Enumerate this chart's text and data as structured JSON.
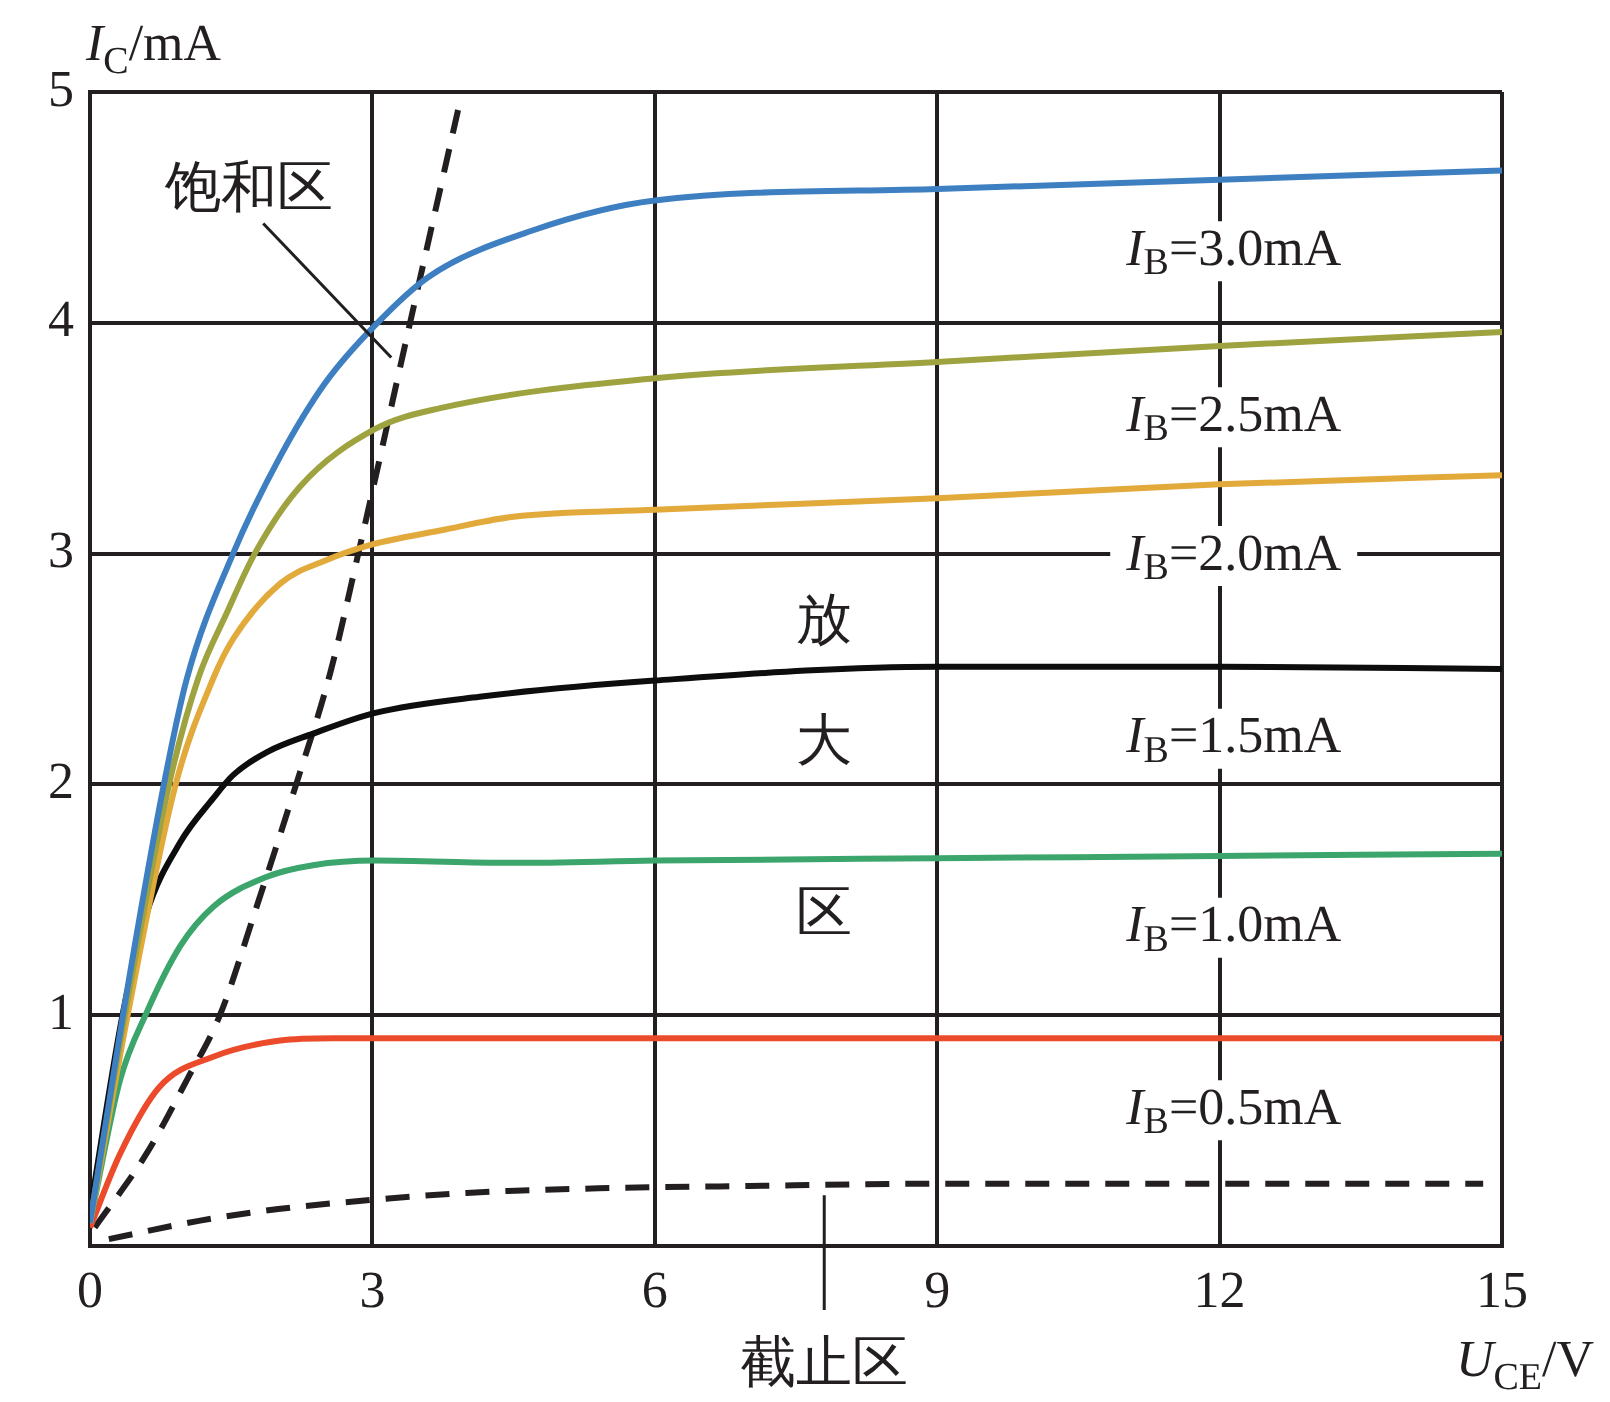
{
  "chart_data": {
    "type": "line",
    "xlabel": "U$_{CE}$/V",
    "ylabel": "I$_{C}$/mA",
    "xlim": [
      0,
      15
    ],
    "xticks": [
      0,
      3,
      6,
      9,
      12,
      15
    ],
    "ylim": [
      0,
      5
    ],
    "yticks": [
      1,
      2,
      3,
      4,
      5
    ],
    "grid": true,
    "marker": "none",
    "annotations": [
      {
        "text": "饱和区",
        "x": 3.2,
        "y": 3.85
      },
      "放大区",
      {
        "text": "截止区",
        "x": 7.8,
        "y": 0.22
      }
    ],
    "series": [
      {
        "name": "I$_{B}$=3.0mA",
        "color": "#3d7fc1",
        "x": [
          0,
          0.35,
          0.78,
          1.03,
          1.52,
          2.02,
          2.5,
          3.03,
          3.6,
          4.7,
          6,
          9,
          12,
          15
        ],
        "values": [
          0.1,
          1,
          1.99,
          2.46,
          3,
          3.42,
          3.74,
          3.99,
          4.2,
          4.4,
          4.53,
          4.58,
          4.62,
          4.66
        ]
      },
      {
        "name": "I$_{B}$=2.5mA",
        "color": "#9fa33f",
        "x": [
          0,
          0.37,
          0.84,
          1.15,
          1.45,
          1.75,
          2.23,
          3.03,
          3.72,
          6,
          9,
          12,
          15
        ],
        "values": [
          0.1,
          1,
          2,
          2.46,
          2.74,
          3,
          3.29,
          3.54,
          3.63,
          3.76,
          3.83,
          3.9,
          3.96
        ]
      },
      {
        "name": "I$_{B}$=2.0mA",
        "color": "#e2a93b",
        "x": [
          0,
          0.4,
          0.91,
          1.31,
          1.52,
          2.02,
          2.5,
          3,
          3.72,
          4.5,
          6,
          9,
          12,
          15
        ],
        "values": [
          0.1,
          1,
          2,
          2.46,
          2.63,
          2.87,
          2.97,
          3.04,
          3.1,
          3.16,
          3.19,
          3.24,
          3.3,
          3.34
        ]
      },
      {
        "name": "I$_{B}$=1.5mA",
        "color": "#0d0d0d",
        "x": [
          0,
          0.35,
          0.6,
          0.96,
          1.31,
          1.52,
          1.88,
          2.37,
          3.03,
          4.14,
          6,
          9,
          12,
          15
        ],
        "values": [
          0.15,
          1.01,
          1.44,
          1.75,
          1.94,
          2.04,
          2.14,
          2.22,
          2.31,
          2.38,
          2.45,
          2.51,
          2.51,
          2.5
        ]
      },
      {
        "name": "I$_{B}$=1.0mA",
        "color": "#3ba56b",
        "x": [
          0,
          0.32,
          0.6,
          0.96,
          1.31,
          1.88,
          2.37,
          3.03,
          4.5,
          6,
          9,
          12,
          15
        ],
        "values": [
          0.1,
          0.72,
          1.01,
          1.3,
          1.47,
          1.6,
          1.65,
          1.67,
          1.66,
          1.67,
          1.68,
          1.69,
          1.7
        ]
      },
      {
        "name": "I$_{B}$=0.5mA",
        "color": "#ec4b2b",
        "x": [
          0,
          0.32,
          0.74,
          1.31,
          2.02,
          2.58,
          15
        ],
        "values": [
          0.08,
          0.4,
          0.69,
          0.82,
          0.89,
          0.9,
          0.9
        ]
      },
      {
        "color": "#231f20",
        "line_style": "dashed",
        "x": [
          0.2,
          1.17,
          2,
          3,
          4,
          5.4,
          7,
          9,
          14.8
        ],
        "values": [
          0.03,
          0.11,
          0.16,
          0.2,
          0.23,
          0.25,
          0.26,
          0.27,
          0.27
        ]
      },
      {
        "color": "#231f20",
        "line_style": "dashed",
        "x": [
          0.05,
          0.6,
          1.03,
          1.38,
          1.77,
          2.19,
          2.55,
          2.85,
          3.4,
          3.92
        ],
        "values": [
          0.08,
          0.4,
          0.72,
          1,
          1.47,
          2,
          2.48,
          3,
          4,
          4.94
        ]
      }
    ]
  }
}
